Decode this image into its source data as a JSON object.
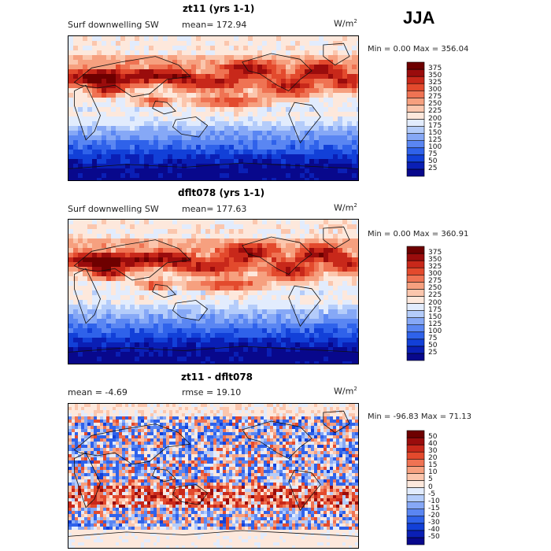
{
  "season": "JJA",
  "units_base": "W/m",
  "units_exp": "2",
  "panels": [
    {
      "title": "zt11 (yrs 1-1)",
      "left_text": "Surf downwelling SW",
      "mean_text": "mean= 172.94",
      "minmax_text": "Min =    0.00 Max = 356.04",
      "kind": "abs"
    },
    {
      "title": "dflt078 (yrs 1-1)",
      "left_text": "Surf downwelling SW",
      "mean_text": "mean= 177.63",
      "minmax_text": "Min =    0.00 Max = 360.91",
      "kind": "abs"
    },
    {
      "title": "zt11 - dflt078",
      "left_text": "mean =   -4.69",
      "mean_text": "rmse =  19.10",
      "minmax_text": "Min = -96.83 Max =  71.13",
      "kind": "diff"
    }
  ],
  "chart_data": [
    {
      "type": "heatmap",
      "title": "zt11 (yrs 1-1)",
      "subtitle": "Surf downwelling SW",
      "mean": 172.94,
      "min": 0.0,
      "max": 356.04,
      "units": "W/m2",
      "colorbar_levels": [
        25,
        50,
        75,
        100,
        125,
        150,
        175,
        200,
        225,
        250,
        275,
        300,
        325,
        350,
        375
      ]
    },
    {
      "type": "heatmap",
      "title": "dflt078 (yrs 1-1)",
      "subtitle": "Surf downwelling SW",
      "mean": 177.63,
      "min": 0.0,
      "max": 360.91,
      "units": "W/m2",
      "colorbar_levels": [
        25,
        50,
        75,
        100,
        125,
        150,
        175,
        200,
        225,
        250,
        275,
        300,
        325,
        350,
        375
      ]
    },
    {
      "type": "heatmap",
      "title": "zt11 - dflt078",
      "mean": -4.69,
      "rmse": 19.1,
      "min": -96.83,
      "max": 71.13,
      "units": "W/m2",
      "colorbar_levels": [
        -50,
        -40,
        -30,
        -20,
        -15,
        -10,
        -5,
        0,
        5,
        10,
        15,
        20,
        30,
        40,
        50
      ]
    }
  ],
  "colors": {
    "abs": [
      "#08088c",
      "#0a1fb5",
      "#1240d8",
      "#2f62ea",
      "#5a86f2",
      "#86a8f6",
      "#b4ccfa",
      "#e2ecfd",
      "#fde8dc",
      "#fbc6ad",
      "#f6a07f",
      "#ef7353",
      "#e34a2d",
      "#c8281a",
      "#9a0c0c",
      "#6e0000"
    ],
    "diff": [
      "#08088c",
      "#0a1fb5",
      "#1240d8",
      "#2f62ea",
      "#5a86f2",
      "#86a8f6",
      "#b4ccfa",
      "#e2ecfd",
      "#fde8dc",
      "#fbc6ad",
      "#f6a07f",
      "#ef7353",
      "#e34a2d",
      "#c8281a",
      "#9a0c0c",
      "#6e0000"
    ]
  }
}
